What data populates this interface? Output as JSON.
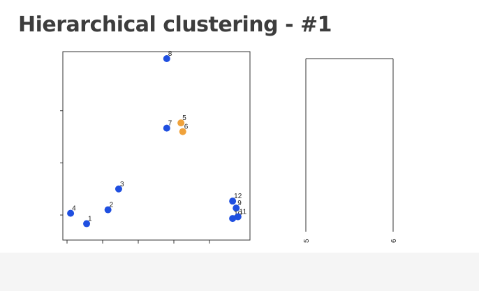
{
  "slide": {
    "title": "Hierarchical clustering - #1"
  },
  "colors": {
    "unclustered": "#1f4fe0",
    "merged": "#f0a23b",
    "axis": "#333333",
    "dendrogram_line": "#333333"
  },
  "chart_data": [
    {
      "type": "scatter",
      "xlim": [
        0,
        10
      ],
      "ylim": [
        0,
        10
      ],
      "grid": false,
      "x_ticks": [
        0,
        2,
        4,
        6,
        8
      ],
      "y_ticks": [
        1,
        4,
        7
      ],
      "points": [
        {
          "label": "1",
          "x": 1.1,
          "y": 0.5,
          "cluster": "unclustered"
        },
        {
          "label": "2",
          "x": 2.3,
          "y": 1.3,
          "cluster": "unclustered"
        },
        {
          "label": "3",
          "x": 2.9,
          "y": 2.5,
          "cluster": "unclustered"
        },
        {
          "label": "4",
          "x": 0.2,
          "y": 1.1,
          "cluster": "unclustered"
        },
        {
          "label": "5",
          "x": 6.4,
          "y": 6.3,
          "cluster": "merged"
        },
        {
          "label": "6",
          "x": 6.5,
          "y": 5.8,
          "cluster": "merged"
        },
        {
          "label": "7",
          "x": 5.6,
          "y": 6.0,
          "cluster": "unclustered"
        },
        {
          "label": "8",
          "x": 5.6,
          "y": 10.0,
          "cluster": "unclustered"
        },
        {
          "label": "9",
          "x": 9.5,
          "y": 1.4,
          "cluster": "unclustered"
        },
        {
          "label": "10",
          "x": 9.3,
          "y": 0.8,
          "cluster": "unclustered"
        },
        {
          "label": "11",
          "x": 9.6,
          "y": 0.9,
          "cluster": "unclustered"
        },
        {
          "label": "12",
          "x": 9.3,
          "y": 1.8,
          "cluster": "unclustered"
        }
      ]
    },
    {
      "type": "dendrogram",
      "leaves": [
        "5",
        "6"
      ],
      "merge_height": 1.0
    }
  ]
}
